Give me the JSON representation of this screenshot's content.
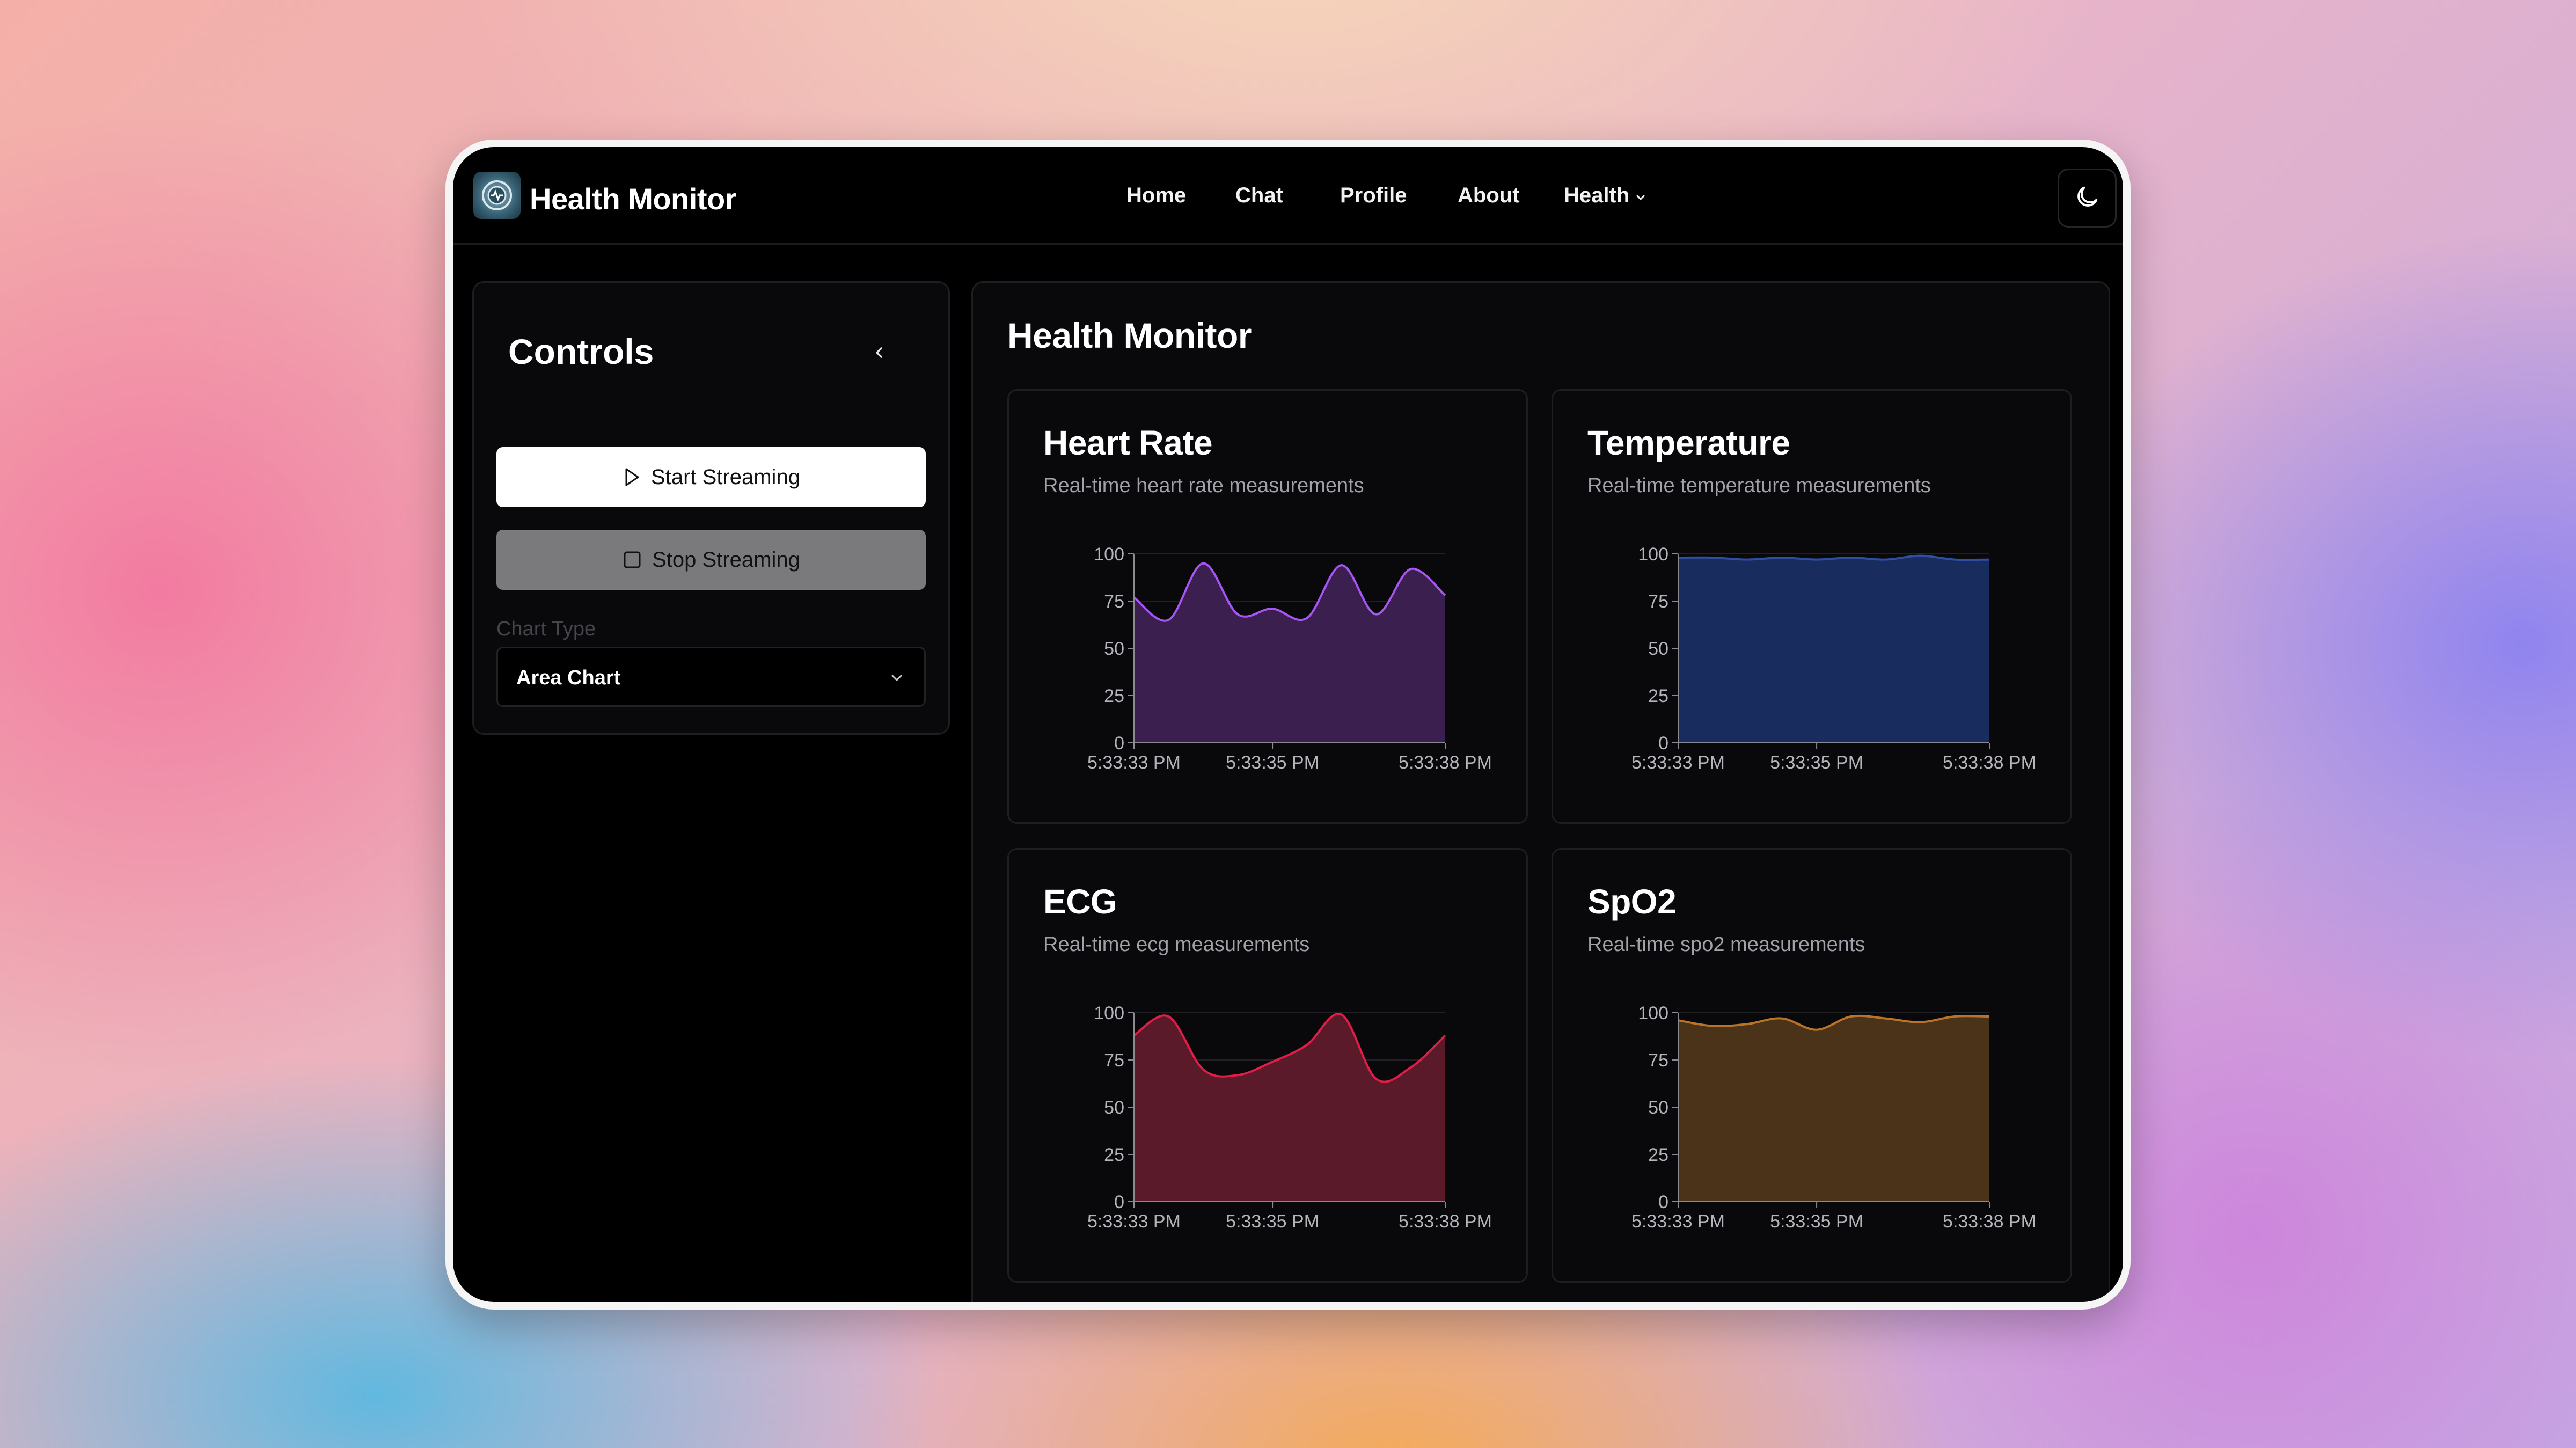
{
  "app": {
    "title": "Health Monitor"
  },
  "nav": {
    "items": [
      {
        "label": "Home"
      },
      {
        "label": "Chat"
      },
      {
        "label": "Profile"
      },
      {
        "label": "About"
      },
      {
        "label": "Health"
      }
    ]
  },
  "icons": {
    "logo": "health-monitor-logo-icon",
    "theme": "moon-icon",
    "collapse": "chevron-left-icon",
    "start": "play-icon",
    "stop": "square-icon",
    "dropdown": "chevron-down-icon"
  },
  "sidebar": {
    "title": "Controls",
    "start_label": "Start Streaming",
    "stop_label": "Stop Streaming",
    "chart_type_label": "Chart Type",
    "chart_type_value": "Area Chart"
  },
  "main": {
    "title": "Health Monitor"
  },
  "cards": [
    {
      "title": "Heart Rate",
      "description": "Real-time heart rate measurements"
    },
    {
      "title": "Temperature",
      "description": "Real-time temperature measurements"
    },
    {
      "title": "ECG",
      "description": "Real-time ecg measurements"
    },
    {
      "title": "SpO2",
      "description": "Real-time spo2 measurements"
    }
  ],
  "chart_data": [
    {
      "type": "area",
      "title": "Heart Rate",
      "color": "#a855f7",
      "fill": "#3b1f4f",
      "ylim": [
        0,
        100
      ],
      "yticks": [
        0,
        25,
        50,
        75,
        100
      ],
      "xtick_labels": [
        "5:33:33 PM",
        "5:33:35 PM",
        "5:33:38 PM"
      ],
      "values": [
        77,
        65,
        95,
        68,
        71,
        66,
        94,
        68,
        92,
        78
      ]
    },
    {
      "type": "area",
      "title": "Temperature",
      "color": "#2f4ea6",
      "fill": "#182c5e",
      "ylim": [
        0,
        100
      ],
      "yticks": [
        0,
        25,
        50,
        75,
        100
      ],
      "xtick_labels": [
        "5:33:33 PM",
        "5:33:35 PM",
        "5:33:38 PM"
      ],
      "values": [
        98,
        98,
        97,
        98,
        97,
        98,
        97,
        99,
        97,
        97
      ]
    },
    {
      "type": "area",
      "title": "ECG",
      "color": "#e11d48",
      "fill": "#5b1a2a",
      "ylim": [
        0,
        100
      ],
      "yticks": [
        0,
        25,
        50,
        75,
        100
      ],
      "xtick_labels": [
        "5:33:33 PM",
        "5:33:35 PM",
        "5:33:38 PM"
      ],
      "values": [
        88,
        98,
        70,
        67,
        74,
        83,
        99,
        65,
        71,
        88
      ]
    },
    {
      "type": "area",
      "title": "SpO2",
      "color": "#b8752a",
      "fill": "#4a3318",
      "ylim": [
        0,
        100
      ],
      "yticks": [
        0,
        25,
        50,
        75,
        100
      ],
      "xtick_labels": [
        "5:33:33 PM",
        "5:33:35 PM",
        "5:33:38 PM"
      ],
      "values": [
        96,
        93,
        94,
        97,
        91,
        98,
        97,
        95,
        98,
        98
      ]
    }
  ]
}
